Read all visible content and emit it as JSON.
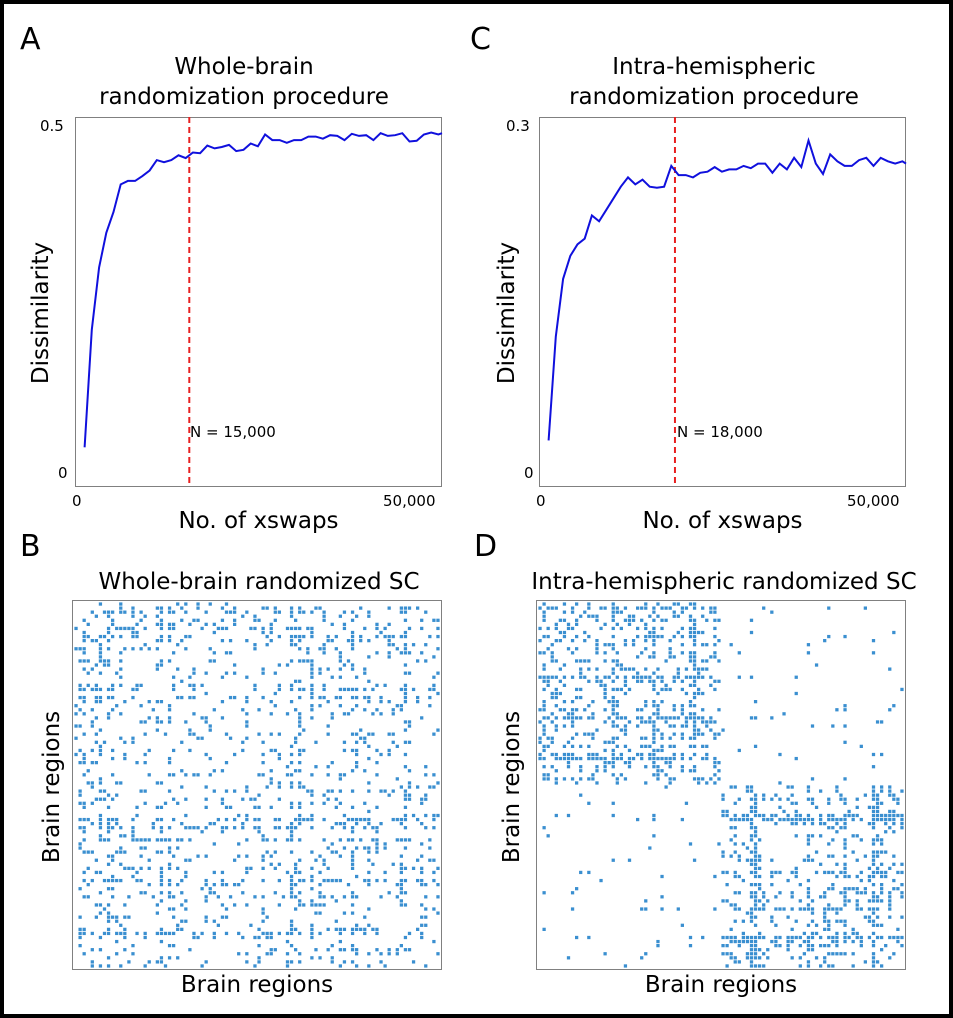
{
  "colors": {
    "line": "#1010dd",
    "threshold": "#e82020",
    "matrix": "#3a8fd0"
  },
  "panels": {
    "A": {
      "letter": "A",
      "title_line1": "Whole-brain",
      "title_line2": "randomization procedure",
      "ylabel": "Dissimilarity",
      "xlabel": "No. of xswaps",
      "xtick_left": "0",
      "xtick_right": "50,000",
      "ytick_top": "0.5",
      "ytick_bottom": "0",
      "annotation": "N = 15,000"
    },
    "C": {
      "letter": "C",
      "title_line1": "Intra-hemispheric",
      "title_line2": "randomization procedure",
      "ylabel": "Dissimilarity",
      "xlabel": "No. of xswaps",
      "xtick_left": "0",
      "xtick_right": "50,000",
      "ytick_top": "0.3",
      "ytick_bottom": "0",
      "annotation": "N = 18,000"
    },
    "B": {
      "letter": "B",
      "title": "Whole-brain randomized SC",
      "xlabel": "Brain regions",
      "ylabel": "Brain regions"
    },
    "D": {
      "letter": "D",
      "title": "Intra-hemispheric randomized SC",
      "xlabel": "Brain regions",
      "ylabel": "Brain regions"
    }
  },
  "chart_data": [
    {
      "type": "line",
      "panel": "A",
      "title": "Whole-brain randomization procedure",
      "xlabel": "No. of xswaps",
      "ylabel": "Dissimilarity",
      "xlim": [
        0,
        50000
      ],
      "ylim": [
        0,
        0.5
      ],
      "threshold_x": 15000,
      "threshold_label": "N = 15,000",
      "x": [
        500,
        1500,
        2500,
        3500,
        4500,
        5500,
        6500,
        7500,
        8500,
        9500,
        10500,
        11500,
        12500,
        13500,
        14500,
        15500,
        16500,
        17500,
        18500,
        19500,
        20500,
        21500,
        22500,
        23500,
        24500,
        25500,
        26500,
        27500,
        28500,
        29500,
        30500,
        31500,
        32500,
        33500,
        34500,
        35500,
        36500,
        37500,
        38500,
        39500,
        40500,
        41500,
        42500,
        43500,
        44500,
        45500,
        46500,
        47500,
        48500,
        49500,
        50500
      ],
      "y": [
        0.04,
        0.21,
        0.3,
        0.35,
        0.38,
        0.42,
        0.425,
        0.425,
        0.432,
        0.44,
        0.455,
        0.452,
        0.455,
        0.462,
        0.458,
        0.466,
        0.465,
        0.476,
        0.472,
        0.474,
        0.477,
        0.468,
        0.47,
        0.479,
        0.475,
        0.492,
        0.484,
        0.484,
        0.48,
        0.484,
        0.484,
        0.489,
        0.489,
        0.486,
        0.491,
        0.49,
        0.484,
        0.493,
        0.49,
        0.491,
        0.484,
        0.494,
        0.49,
        0.491,
        0.494,
        0.482,
        0.483,
        0.492,
        0.495,
        0.492,
        0.494
      ]
    },
    {
      "type": "line",
      "panel": "C",
      "title": "Intra-hemispheric randomization procedure",
      "xlabel": "No. of xswaps",
      "ylabel": "Dissimilarity",
      "xlim": [
        0,
        50000
      ],
      "ylim": [
        0,
        0.3
      ],
      "threshold_x": 18000,
      "threshold_label": "N = 18,000",
      "x": [
        500,
        1500,
        2500,
        3500,
        4500,
        5500,
        6500,
        7500,
        8500,
        9500,
        10500,
        11500,
        12500,
        13500,
        14500,
        15500,
        16500,
        17500,
        18500,
        19500,
        20500,
        21500,
        22500,
        23500,
        24500,
        25500,
        26500,
        27500,
        28500,
        29500,
        30500,
        31500,
        32500,
        33500,
        34500,
        35500,
        36500,
        37500,
        38500,
        39500,
        40500,
        41500,
        42500,
        43500,
        44500,
        45500,
        46500,
        47500,
        48500,
        49500,
        50500
      ],
      "y": [
        0.03,
        0.12,
        0.17,
        0.19,
        0.2,
        0.205,
        0.225,
        0.22,
        0.23,
        0.24,
        0.25,
        0.258,
        0.252,
        0.256,
        0.25,
        0.249,
        0.25,
        0.268,
        0.26,
        0.26,
        0.258,
        0.262,
        0.263,
        0.267,
        0.263,
        0.265,
        0.265,
        0.268,
        0.266,
        0.27,
        0.27,
        0.262,
        0.27,
        0.265,
        0.275,
        0.267,
        0.29,
        0.27,
        0.261,
        0.278,
        0.272,
        0.268,
        0.268,
        0.273,
        0.275,
        0.268,
        0.275,
        0.272,
        0.27,
        0.272,
        0.27
      ]
    },
    {
      "type": "heatmap",
      "panel": "B",
      "title": "Whole-brain randomized SC",
      "xlabel": "Brain regions",
      "ylabel": "Brain regions",
      "n_regions": 90,
      "pattern": "binary connectivity matrix, sparse random, hub rows/columns"
    },
    {
      "type": "heatmap",
      "panel": "D",
      "title": "Intra-hemispheric randomized SC",
      "xlabel": "Brain regions",
      "ylabel": "Brain regions",
      "n_regions": 90,
      "pattern": "binary connectivity matrix, dense intra-hemispheric blocks, sparse inter-hemispheric blocks"
    }
  ]
}
